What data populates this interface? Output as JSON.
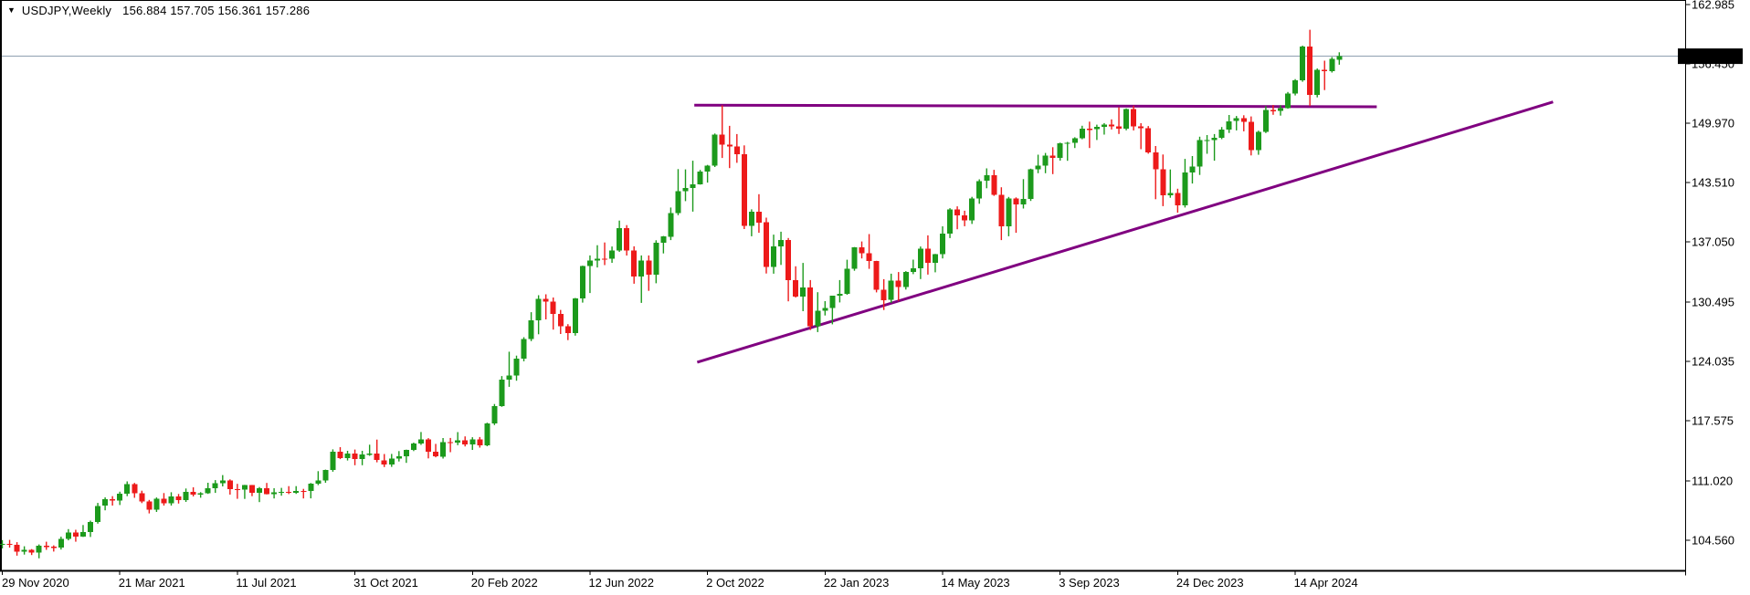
{
  "title": {
    "symbol": "USDJPY,Weekly",
    "ohlc": "156.884 157.705 156.361 157.286",
    "open": "156.884",
    "high": "157.705",
    "low": "156.361",
    "close": "157.286",
    "dropdown_icon": "▼"
  },
  "chart_data": {
    "type": "candlestick",
    "symbol": "USDJPY",
    "timeframe": "Weekly",
    "start_week": "2020-11-29",
    "current_price": "157.286",
    "price_axis_ticks": [
      "162.985",
      "156.450",
      "149.970",
      "143.510",
      "137.050",
      "130.495",
      "124.035",
      "117.575",
      "111.020",
      "104.560"
    ],
    "date_axis_ticks": [
      "29 Nov 2020",
      "21 Mar 2021",
      "11 Jul 2021",
      "31 Oct 2021",
      "20 Feb 2022",
      "12 Jun 2022",
      "2 Oct 2022",
      "22 Jan 2023",
      "14 May 2023",
      "3 Sep 2023",
      "24 Dec 2023",
      "14 Apr 2024"
    ],
    "weeks_per_date_tick": 16,
    "ylim": [
      101.5,
      163.4
    ],
    "grid": false,
    "trendlines": [
      {
        "name": "horizontal-resistance",
        "from_week": 94.2,
        "from_price": 151.95,
        "to_week": 187.1,
        "to_price": 151.78
      },
      {
        "name": "ascending-support",
        "from_week": 94.6,
        "from_price": 123.95,
        "to_week": 211.1,
        "to_price": 152.3
      }
    ],
    "candles": [
      [
        104.05,
        104.58,
        103.67,
        104.18
      ],
      [
        104.18,
        104.6,
        103.75,
        104.05
      ],
      [
        104.05,
        104.35,
        102.88,
        103.3
      ],
      [
        103.3,
        103.9,
        103.0,
        103.5
      ],
      [
        103.5,
        103.6,
        102.95,
        103.2
      ],
      [
        103.2,
        104.1,
        102.59,
        103.95
      ],
      [
        103.95,
        104.4,
        103.52,
        103.85
      ],
      [
        103.85,
        104.0,
        103.33,
        103.78
      ],
      [
        103.78,
        104.95,
        103.55,
        104.7
      ],
      [
        104.7,
        105.77,
        104.55,
        105.39
      ],
      [
        105.39,
        105.7,
        104.4,
        104.94
      ],
      [
        104.94,
        106.22,
        104.92,
        105.45
      ],
      [
        105.45,
        106.7,
        104.92,
        106.57
      ],
      [
        106.57,
        108.63,
        106.37,
        108.31
      ],
      [
        108.31,
        109.23,
        107.82,
        109.02
      ],
      [
        109.02,
        109.36,
        108.34,
        108.88
      ],
      [
        108.88,
        109.85,
        108.4,
        109.64
      ],
      [
        109.64,
        110.97,
        109.36,
        110.69
      ],
      [
        110.69,
        110.8,
        109.18,
        109.67
      ],
      [
        109.67,
        109.96,
        108.61,
        108.8
      ],
      [
        108.8,
        108.95,
        107.48,
        107.88
      ],
      [
        107.88,
        109.22,
        107.64,
        109.09
      ],
      [
        109.09,
        109.7,
        108.34,
        108.6
      ],
      [
        108.6,
        109.79,
        108.34,
        109.35
      ],
      [
        109.35,
        109.6,
        108.56,
        108.95
      ],
      [
        108.95,
        110.2,
        108.73,
        109.85
      ],
      [
        109.85,
        110.33,
        109.33,
        109.52
      ],
      [
        109.52,
        109.8,
        109.19,
        109.66
      ],
      [
        109.66,
        110.82,
        109.61,
        110.21
      ],
      [
        110.21,
        111.11,
        109.72,
        110.75
      ],
      [
        110.75,
        111.66,
        110.42,
        111.05
      ],
      [
        111.05,
        111.19,
        109.53,
        110.14
      ],
      [
        110.14,
        110.7,
        109.07,
        110.08
      ],
      [
        110.08,
        110.59,
        109.06,
        110.55
      ],
      [
        110.55,
        110.58,
        109.36,
        109.72
      ],
      [
        109.72,
        110.36,
        108.72,
        110.25
      ],
      [
        110.25,
        110.8,
        109.55,
        109.59
      ],
      [
        109.59,
        110.23,
        109.11,
        109.78
      ],
      [
        109.78,
        110.27,
        109.41,
        109.84
      ],
      [
        109.84,
        110.45,
        109.59,
        109.71
      ],
      [
        109.71,
        110.45,
        109.61,
        109.94
      ],
      [
        109.94,
        110.16,
        109.11,
        109.93
      ],
      [
        109.93,
        110.79,
        109.12,
        110.73
      ],
      [
        110.73,
        112.08,
        110.56,
        111.05
      ],
      [
        111.05,
        112.25,
        110.82,
        112.2
      ],
      [
        112.2,
        114.46,
        112.03,
        114.22
      ],
      [
        114.22,
        114.7,
        113.4,
        113.5
      ],
      [
        113.5,
        114.3,
        113.25,
        114.0
      ],
      [
        114.0,
        114.44,
        112.73,
        113.4
      ],
      [
        113.4,
        114.3,
        112.73,
        113.89
      ],
      [
        113.89,
        114.97,
        113.75,
        113.99
      ],
      [
        113.99,
        115.52,
        113.05,
        113.28
      ],
      [
        113.28,
        113.95,
        112.53,
        112.8
      ],
      [
        112.8,
        113.96,
        112.55,
        113.44
      ],
      [
        113.44,
        114.27,
        113.14,
        113.7
      ],
      [
        113.7,
        114.43,
        112.99,
        114.38
      ],
      [
        114.38,
        115.2,
        114.27,
        115.08
      ],
      [
        115.08,
        116.35,
        114.95,
        115.56
      ],
      [
        115.56,
        115.68,
        113.48,
        114.19
      ],
      [
        114.19,
        115.06,
        113.6,
        113.68
      ],
      [
        113.68,
        115.69,
        113.46,
        115.25
      ],
      [
        115.25,
        115.7,
        114.15,
        115.2
      ],
      [
        115.2,
        116.34,
        114.92,
        115.42
      ],
      [
        115.42,
        115.87,
        114.78,
        115.0
      ],
      [
        115.0,
        115.78,
        114.4,
        115.55
      ],
      [
        115.55,
        115.8,
        114.65,
        114.9
      ],
      [
        114.9,
        117.36,
        114.8,
        117.29
      ],
      [
        117.29,
        119.4,
        117.1,
        119.17
      ],
      [
        119.17,
        122.44,
        119.09,
        122.05
      ],
      [
        122.05,
        125.1,
        121.27,
        122.52
      ],
      [
        122.52,
        124.67,
        121.94,
        124.34
      ],
      [
        124.34,
        126.68,
        124.05,
        126.46
      ],
      [
        126.46,
        129.4,
        126.25,
        128.5
      ],
      [
        128.5,
        131.25,
        127.0,
        130.85
      ],
      [
        130.85,
        131.35,
        128.62,
        130.56
      ],
      [
        130.56,
        131.0,
        127.5,
        129.22
      ],
      [
        129.22,
        129.65,
        127.03,
        127.88
      ],
      [
        127.88,
        128.1,
        126.36,
        127.1
      ],
      [
        127.1,
        130.95,
        126.85,
        130.88
      ],
      [
        130.88,
        134.47,
        130.44,
        134.41
      ],
      [
        134.41,
        135.58,
        131.49,
        135.02
      ],
      [
        135.02,
        136.7,
        134.27,
        135.23
      ],
      [
        135.23,
        137.0,
        134.53,
        135.22
      ],
      [
        135.22,
        136.56,
        134.78,
        136.1
      ],
      [
        136.1,
        139.38,
        135.97,
        138.57
      ],
      [
        138.57,
        138.88,
        135.57,
        136.12
      ],
      [
        136.12,
        136.58,
        132.5,
        133.27
      ],
      [
        133.27,
        135.58,
        130.41,
        135.01
      ],
      [
        135.01,
        135.58,
        131.73,
        133.5
      ],
      [
        133.5,
        137.23,
        132.55,
        136.96
      ],
      [
        136.96,
        137.7,
        135.8,
        137.64
      ],
      [
        137.64,
        140.8,
        137.25,
        140.2
      ],
      [
        140.2,
        144.99,
        139.97,
        142.58
      ],
      [
        142.58,
        144.96,
        141.5,
        142.92
      ],
      [
        142.92,
        145.9,
        140.36,
        143.31
      ],
      [
        143.31,
        144.9,
        143.3,
        144.74
      ],
      [
        144.74,
        145.44,
        143.52,
        145.35
      ],
      [
        145.35,
        148.86,
        145.22,
        148.75
      ],
      [
        148.75,
        151.94,
        146.2,
        147.65
      ],
      [
        147.65,
        149.7,
        145.1,
        147.47
      ],
      [
        147.47,
        148.8,
        145.67,
        146.62
      ],
      [
        146.62,
        147.57,
        138.46,
        138.81
      ],
      [
        138.81,
        140.6,
        137.67,
        140.37
      ],
      [
        140.37,
        142.25,
        138.05,
        139.18
      ],
      [
        139.18,
        139.7,
        133.62,
        134.31
      ],
      [
        134.31,
        137.85,
        133.6,
        136.56
      ],
      [
        136.56,
        138.17,
        134.55,
        137.28
      ],
      [
        137.28,
        137.48,
        130.58,
        132.91
      ],
      [
        132.91,
        134.4,
        131.0,
        131.12
      ],
      [
        131.12,
        134.77,
        129.51,
        132.08
      ],
      [
        132.08,
        132.9,
        127.46,
        127.87
      ],
      [
        127.87,
        131.58,
        127.23,
        129.57
      ],
      [
        129.57,
        130.6,
        129.04,
        129.88
      ],
      [
        129.88,
        131.2,
        128.08,
        131.18
      ],
      [
        131.18,
        132.9,
        130.46,
        131.4
      ],
      [
        131.4,
        135.12,
        131.3,
        134.15
      ],
      [
        134.15,
        136.5,
        133.91,
        136.48
      ],
      [
        136.48,
        137.1,
        135.26,
        135.83
      ],
      [
        135.83,
        137.91,
        134.12,
        134.98
      ],
      [
        134.98,
        135.0,
        131.56,
        131.85
      ],
      [
        131.85,
        133.0,
        129.64,
        130.73
      ],
      [
        130.73,
        133.6,
        130.41,
        132.86
      ],
      [
        132.86,
        133.77,
        130.62,
        132.16
      ],
      [
        132.16,
        133.87,
        131.87,
        133.78
      ],
      [
        133.78,
        135.13,
        133.55,
        134.16
      ],
      [
        134.16,
        136.56,
        133.01,
        136.3
      ],
      [
        136.3,
        137.77,
        133.5,
        134.79
      ],
      [
        134.79,
        135.75,
        133.74,
        135.7
      ],
      [
        135.7,
        138.75,
        135.26,
        137.98
      ],
      [
        137.98,
        140.73,
        137.47,
        140.6
      ],
      [
        140.6,
        140.93,
        138.44,
        139.95
      ],
      [
        139.95,
        140.45,
        138.76,
        139.4
      ],
      [
        139.4,
        141.97,
        139.01,
        141.8
      ],
      [
        141.8,
        143.87,
        141.21,
        143.7
      ],
      [
        143.7,
        145.07,
        142.9,
        144.31
      ],
      [
        144.31,
        144.91,
        142.07,
        142.17
      ],
      [
        142.17,
        143.01,
        137.25,
        138.77
      ],
      [
        138.77,
        141.96,
        137.67,
        141.81
      ],
      [
        141.81,
        141.91,
        138.05,
        141.16
      ],
      [
        141.16,
        143.89,
        140.69,
        141.76
      ],
      [
        141.76,
        145.04,
        141.52,
        144.96
      ],
      [
        144.96,
        146.56,
        144.54,
        145.38
      ],
      [
        145.38,
        146.75,
        144.54,
        146.44
      ],
      [
        146.44,
        147.37,
        144.44,
        146.22
      ],
      [
        146.22,
        147.87,
        145.91,
        147.8
      ],
      [
        147.8,
        147.95,
        145.89,
        147.85
      ],
      [
        147.85,
        148.46,
        147.28,
        148.36
      ],
      [
        148.36,
        149.71,
        148.24,
        149.37
      ],
      [
        149.37,
        150.16,
        147.28,
        149.32
      ],
      [
        149.32,
        149.83,
        148.16,
        149.57
      ],
      [
        149.57,
        150.0,
        148.74,
        149.85
      ],
      [
        149.85,
        150.4,
        149.3,
        149.63
      ],
      [
        149.63,
        151.72,
        148.81,
        149.4
      ],
      [
        149.4,
        151.6,
        149.21,
        151.52
      ],
      [
        151.52,
        151.91,
        149.2,
        149.63
      ],
      [
        149.63,
        149.99,
        147.15,
        149.44
      ],
      [
        149.44,
        149.68,
        146.67,
        146.82
      ],
      [
        146.82,
        147.5,
        141.71,
        144.95
      ],
      [
        144.95,
        146.58,
        140.95,
        142.15
      ],
      [
        142.15,
        144.95,
        141.87,
        142.4
      ],
      [
        142.4,
        142.85,
        140.25,
        141.04
      ],
      [
        141.04,
        146.1,
        140.8,
        144.63
      ],
      [
        144.63,
        146.41,
        143.42,
        145.27
      ],
      [
        145.27,
        148.52,
        144.35,
        148.15
      ],
      [
        148.15,
        148.7,
        146.66,
        148.15
      ],
      [
        148.15,
        148.8,
        145.9,
        148.38
      ],
      [
        148.38,
        149.57,
        148.25,
        149.29
      ],
      [
        149.29,
        150.88,
        148.92,
        150.21
      ],
      [
        150.21,
        150.77,
        149.2,
        150.51
      ],
      [
        150.51,
        150.85,
        149.1,
        150.12
      ],
      [
        150.12,
        150.72,
        146.48,
        147.06
      ],
      [
        147.06,
        149.17,
        146.55,
        149.05
      ],
      [
        149.05,
        151.86,
        148.91,
        151.41
      ],
      [
        151.41,
        151.97,
        150.9,
        151.35
      ],
      [
        151.35,
        151.95,
        150.81,
        151.62
      ],
      [
        151.62,
        153.39,
        151.57,
        153.24
      ],
      [
        153.24,
        154.79,
        153.01,
        154.64
      ],
      [
        154.64,
        158.44,
        154.5,
        158.33
      ],
      [
        158.33,
        160.17,
        151.86,
        153.05
      ],
      [
        153.05,
        155.95,
        152.8,
        155.78
      ],
      [
        155.78,
        156.8,
        153.6,
        155.65
      ],
      [
        155.65,
        157.19,
        155.5,
        156.98
      ],
      [
        156.88,
        157.71,
        156.36,
        157.29
      ]
    ],
    "colors": {
      "bull": "#1C9A1C",
      "bear": "#ED1A1A",
      "trendline": "#800080",
      "price_line": "#8FA0B0",
      "badge_bg": "#000000",
      "badge_text": "#FFFFFF",
      "axis_text": "#000000",
      "border": "#000000",
      "background": "#FFFFFF"
    }
  }
}
